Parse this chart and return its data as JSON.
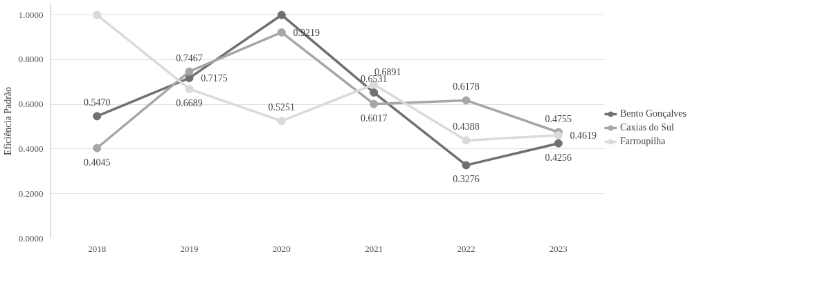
{
  "chart_data": {
    "type": "line",
    "ylabel": "Eficiência Padrão",
    "categories": [
      "2018",
      "2019",
      "2020",
      "2021",
      "2022",
      "2023"
    ],
    "series": [
      {
        "name": "Bento Gonçalves",
        "color": "#707070",
        "values": [
          0.547,
          0.7175,
          1.0,
          0.6531,
          0.3276,
          0.4256
        ],
        "value_labels": [
          "0.5470",
          "0.7175",
          null,
          "0.6531",
          "0.3276",
          "0.4256"
        ]
      },
      {
        "name": "Caxias do Sul",
        "color": "#a6a6a6",
        "values": [
          0.4045,
          0.7467,
          0.9219,
          0.6017,
          0.6178,
          0.4755
        ],
        "value_labels": [
          "0.4045",
          "0.7467",
          "0.9219",
          "0.6017",
          "0.6178",
          "0.4755"
        ]
      },
      {
        "name": "Farroupilha",
        "color": "#dadada",
        "values": [
          1.0,
          0.6689,
          0.5251,
          0.6891,
          0.4388,
          0.4619
        ],
        "value_labels": [
          null,
          "0.6689",
          "0.5251",
          "0.6891",
          "0.4388",
          "0.4619"
        ]
      }
    ],
    "ylim": [
      0,
      1.05
    ],
    "yticks": [
      {
        "value": 0,
        "label": "0.0000"
      },
      {
        "value": 0.2,
        "label": "0.2000"
      },
      {
        "value": 0.4,
        "label": "0.4000"
      },
      {
        "value": 0.6,
        "label": "0.6000"
      },
      {
        "value": 0.8,
        "label": "0.8000"
      },
      {
        "value": 1.0,
        "label": "1.0000"
      }
    ],
    "grid": "y",
    "legend": "right",
    "marker": "circle",
    "line_style": "solid"
  }
}
